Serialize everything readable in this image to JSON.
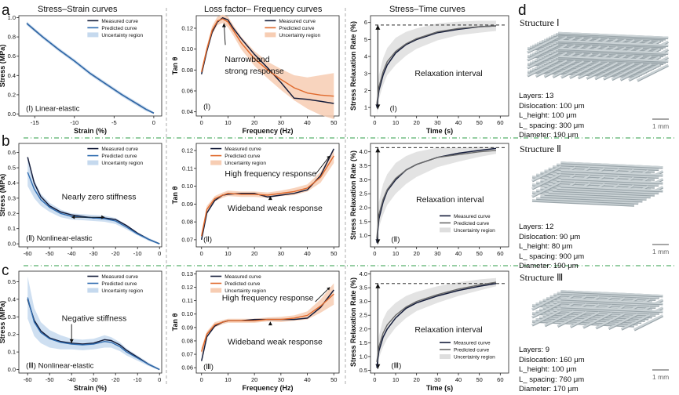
{
  "figure": {
    "row_labels": [
      "a",
      "b",
      "c"
    ],
    "structure_panel_label": "d",
    "column_titles": [
      "Stress–Strain curves",
      "Loss factor– Frequency curves",
      "Stress–Time curves"
    ]
  },
  "legend": {
    "measured": "Measured curve",
    "predicted": "Predicted curve",
    "uncertainty": "Uncertainty region"
  },
  "colors": {
    "measured": "#141c3a",
    "predicted_stress": "#2f6cb0",
    "predicted_loss": "#e0692c",
    "predicted_relax": "#6a6a6a",
    "band_stress": "#c5d9ee",
    "band_loss": "#f7cdb3",
    "band_relax": "#dedede",
    "separator": "#2e9c47",
    "lattice": "#cbd3d6"
  },
  "structures": [
    {
      "title": "Structure Ⅰ",
      "layers": "Layers: 13",
      "dislocation": "Dislocation: 100 μm",
      "l_height": "L_height: 100 μm",
      "l_spacing": "L_ spacing: 300 μm",
      "diameter": "Diameter: 190 μm",
      "scale": "1 mm"
    },
    {
      "title": "Structure Ⅱ",
      "layers": "Layers: 12",
      "dislocation": "Dislocation: 90 μm",
      "l_height": "L_height: 80 μm",
      "l_spacing": "L_ spacing: 900 μm",
      "diameter": "Diameter: 190 μm",
      "scale": "1 mm"
    },
    {
      "title": "Structure Ⅲ",
      "layers": "Layers: 9",
      "dislocation": "Dislocation: 160 μm",
      "l_height": "L_height: 100 μm",
      "l_spacing": "L_ spacing: 760 μm",
      "diameter": "Diameter: 170 μm",
      "scale": "1 mm"
    }
  ],
  "chart_data": [
    {
      "id": "a1",
      "type": "line",
      "xlabel": "Strain (%)",
      "ylabel": "Stress (MPa)",
      "xlim": [
        -17,
        1
      ],
      "ylim": [
        -0.02,
        1.02
      ],
      "xticks": [
        -15,
        -10,
        -5,
        0
      ],
      "yticks": [
        0.0,
        0.2,
        0.4,
        0.6,
        0.8,
        1.0
      ],
      "ytick_labels": [
        "0.0",
        "0.2",
        "0.4",
        "0.6",
        "0.8",
        "1.0"
      ],
      "panel_text": "(Ⅰ) Linear-elastic",
      "legend": "top-right",
      "x": [
        -16,
        -15,
        -14,
        -12,
        -10,
        -8,
        -6,
        -4,
        -2,
        -1,
        0
      ],
      "series": [
        {
          "name": "Measured curve",
          "values": [
            0.94,
            0.87,
            0.8,
            0.67,
            0.55,
            0.42,
            0.31,
            0.2,
            0.1,
            0.05,
            0.01
          ]
        },
        {
          "name": "Predicted curve",
          "values": [
            0.94,
            0.87,
            0.8,
            0.67,
            0.55,
            0.42,
            0.31,
            0.2,
            0.1,
            0.05,
            0.01
          ]
        }
      ],
      "band_width": [
        0.02,
        0.02,
        0.02,
        0.02,
        0.02,
        0.02,
        0.02,
        0.02,
        0.02,
        0.02,
        0.01
      ]
    },
    {
      "id": "a2",
      "type": "line",
      "xlabel": "Frequency (Hz)",
      "ylabel": "Tan θ",
      "xlim": [
        -2,
        52
      ],
      "ylim": [
        0.036,
        0.132
      ],
      "xticks": [
        0,
        10,
        20,
        30,
        40,
        50
      ],
      "yticks": [
        0.04,
        0.06,
        0.08,
        0.1,
        0.12
      ],
      "ytick_labels": [
        "0.04",
        "0.06",
        "0.08",
        "0.10",
        "0.12"
      ],
      "panel_text": "(Ⅰ)",
      "legend": "top-right",
      "annotations": [
        "Narrowband",
        "strong response"
      ],
      "x": [
        0,
        2,
        4,
        6,
        8,
        10,
        12,
        15,
        20,
        25,
        30,
        35,
        40,
        45,
        50
      ],
      "series": [
        {
          "name": "Measured curve",
          "values": [
            0.076,
            0.098,
            0.116,
            0.126,
            0.13,
            0.128,
            0.12,
            0.11,
            0.095,
            0.082,
            0.068,
            0.053,
            0.052,
            0.05,
            0.048
          ]
        },
        {
          "name": "Predicted curve",
          "values": [
            0.078,
            0.1,
            0.118,
            0.127,
            0.129,
            0.126,
            0.118,
            0.106,
            0.091,
            0.08,
            0.071,
            0.063,
            0.058,
            0.056,
            0.055
          ]
        }
      ],
      "band_width": [
        0.003,
        0.003,
        0.004,
        0.004,
        0.004,
        0.005,
        0.005,
        0.006,
        0.007,
        0.008,
        0.01,
        0.012,
        0.015,
        0.019,
        0.022
      ]
    },
    {
      "id": "a3",
      "type": "line",
      "xlabel": "Time (s)",
      "ylabel": "Stress Relaxation Rate  (%)",
      "xlim": [
        -2,
        64
      ],
      "ylim": [
        0.5,
        6.4
      ],
      "xticks": [
        0,
        10,
        20,
        30,
        40,
        50,
        60
      ],
      "yticks": [
        1,
        2,
        3,
        4,
        5,
        6
      ],
      "ytick_labels": [
        "1",
        "2",
        "3",
        "4",
        "5",
        "6"
      ],
      "panel_text": "(Ⅰ)",
      "annotations": [
        "Relaxation interval"
      ],
      "reference_line": 5.85,
      "arrow_range": [
        0.9,
        5.85
      ],
      "x": [
        1,
        2,
        4,
        6,
        10,
        15,
        20,
        30,
        40,
        50,
        58
      ],
      "series": [
        {
          "name": "Measured curve",
          "values": [
            1.0,
            2.0,
            2.9,
            3.5,
            4.2,
            4.7,
            5.0,
            5.4,
            5.6,
            5.75,
            5.8
          ]
        },
        {
          "name": "Predicted curve",
          "values": [
            1.2,
            2.2,
            3.1,
            3.7,
            4.3,
            4.75,
            5.05,
            5.45,
            5.65,
            5.75,
            5.8
          ]
        }
      ],
      "band_width": [
        0.6,
        0.7,
        0.8,
        0.8,
        0.8,
        0.7,
        0.6,
        0.5,
        0.4,
        0.35,
        0.3
      ]
    },
    {
      "id": "b1",
      "type": "line",
      "xlabel": "",
      "ylabel": "Stress (MPa)",
      "xlim": [
        -64,
        1
      ],
      "ylim": [
        -0.02,
        0.66
      ],
      "xticks": [
        -60,
        -50,
        -40,
        -30,
        -20,
        -10,
        0
      ],
      "yticks": [
        0.0,
        0.1,
        0.2,
        0.3,
        0.4,
        0.5,
        0.6
      ],
      "ytick_labels": [
        "0.0",
        "0.1",
        "0.2",
        "0.3",
        "0.4",
        "0.5",
        "0.6"
      ],
      "panel_text": "(Ⅱ) Nonlinear-elastic",
      "legend": "top-right",
      "annotations": [
        "Nearly zero stiffness"
      ],
      "x": [
        -60,
        -57,
        -54,
        -50,
        -45,
        -40,
        -35,
        -30,
        -25,
        -20,
        -15,
        -10,
        -5,
        0
      ],
      "series": [
        {
          "name": "Measured curve",
          "values": [
            0.57,
            0.4,
            0.31,
            0.25,
            0.21,
            0.19,
            0.18,
            0.17,
            0.17,
            0.16,
            0.12,
            0.07,
            0.03,
            0.0
          ]
        },
        {
          "name": "Predicted curve",
          "values": [
            0.47,
            0.36,
            0.29,
            0.24,
            0.2,
            0.18,
            0.175,
            0.17,
            0.165,
            0.15,
            0.11,
            0.065,
            0.03,
            0.0
          ]
        }
      ],
      "band_width": [
        0.09,
        0.06,
        0.04,
        0.03,
        0.025,
        0.02,
        0.02,
        0.02,
        0.02,
        0.02,
        0.015,
        0.01,
        0.01,
        0.005
      ]
    },
    {
      "id": "b2",
      "type": "line",
      "xlabel": "",
      "ylabel": "Tan θ",
      "xlim": [
        -2,
        52
      ],
      "ylim": [
        0.066,
        0.124
      ],
      "xticks": [
        0,
        10,
        20,
        30,
        40,
        50
      ],
      "yticks": [
        0.07,
        0.08,
        0.09,
        0.1,
        0.11,
        0.12
      ],
      "ytick_labels": [
        "0.07",
        "0.08",
        "0.09",
        "0.10",
        "0.11",
        "0.12"
      ],
      "panel_text": "(Ⅱ)",
      "legend": "top-left",
      "annotations": [
        "High frequency response",
        "Wideband weak response"
      ],
      "x": [
        0,
        2,
        5,
        8,
        10,
        15,
        20,
        25,
        30,
        35,
        40,
        45,
        50
      ],
      "series": [
        {
          "name": "Measured curve",
          "values": [
            0.07,
            0.085,
            0.092,
            0.095,
            0.0955,
            0.096,
            0.096,
            0.094,
            0.095,
            0.096,
            0.098,
            0.106,
            0.121
          ]
        },
        {
          "name": "Predicted curve",
          "values": [
            0.072,
            0.087,
            0.093,
            0.095,
            0.096,
            0.0955,
            0.0955,
            0.095,
            0.096,
            0.097,
            0.099,
            0.105,
            0.117
          ]
        }
      ],
      "band_width": [
        0.002,
        0.002,
        0.0015,
        0.0015,
        0.0015,
        0.0015,
        0.0015,
        0.0015,
        0.0015,
        0.002,
        0.002,
        0.003,
        0.004
      ]
    },
    {
      "id": "b3",
      "type": "line",
      "xlabel": "",
      "ylabel": "Stress Relaxation Rate  (%)",
      "xlim": [
        -2,
        64
      ],
      "ylim": [
        0.6,
        4.3
      ],
      "xticks": [
        0,
        10,
        20,
        30,
        40,
        50,
        60
      ],
      "yticks": [
        1.0,
        1.5,
        2.0,
        2.5,
        3.0,
        3.5,
        4.0
      ],
      "ytick_labels": [
        "1.0",
        "1.5",
        "2.0",
        "2.5",
        "3.0",
        "3.5",
        "4.0"
      ],
      "panel_text": "(Ⅱ)",
      "legend": "bottom-right",
      "annotations": [
        "Relaxation interval"
      ],
      "reference_line": 4.15,
      "arrow_range": [
        0.7,
        4.15
      ],
      "x": [
        1,
        2,
        4,
        6,
        10,
        15,
        20,
        30,
        40,
        50,
        58
      ],
      "series": [
        {
          "name": "Measured curve",
          "values": [
            0.75,
            1.6,
            2.2,
            2.6,
            3.0,
            3.35,
            3.55,
            3.8,
            3.95,
            4.05,
            4.12
          ]
        },
        {
          "name": "Predicted curve",
          "values": [
            0.9,
            1.75,
            2.3,
            2.65,
            3.05,
            3.35,
            3.55,
            3.8,
            3.9,
            4.0,
            4.05
          ]
        }
      ],
      "band_width": [
        0.3,
        0.45,
        0.55,
        0.55,
        0.55,
        0.5,
        0.45,
        0.35,
        0.25,
        0.18,
        0.12
      ]
    },
    {
      "id": "c1",
      "type": "line",
      "xlabel": "Strain (%)",
      "ylabel": "Stress (MPa)",
      "xlim": [
        -64,
        1
      ],
      "ylim": [
        -0.02,
        0.56
      ],
      "xticks": [
        -60,
        -50,
        -40,
        -30,
        -20,
        -10,
        0
      ],
      "yticks": [
        0.0,
        0.1,
        0.2,
        0.3,
        0.4,
        0.5
      ],
      "ytick_labels": [
        "0.0",
        "0.1",
        "0.2",
        "0.3",
        "0.4",
        "0.5"
      ],
      "panel_text": "(Ⅲ) Nonlinear-elastic",
      "legend": "top-right",
      "annotations": [
        "Negative stiffness"
      ],
      "x": [
        -60,
        -57,
        -54,
        -50,
        -45,
        -40,
        -35,
        -30,
        -25,
        -22,
        -18,
        -15,
        -10,
        -5,
        0
      ],
      "series": [
        {
          "name": "Measured curve",
          "values": [
            0.4,
            0.28,
            0.22,
            0.18,
            0.16,
            0.15,
            0.145,
            0.15,
            0.17,
            0.165,
            0.14,
            0.11,
            0.07,
            0.03,
            0.0
          ]
        },
        {
          "name": "Predicted curve",
          "values": [
            0.41,
            0.27,
            0.21,
            0.175,
            0.155,
            0.145,
            0.14,
            0.145,
            0.16,
            0.155,
            0.13,
            0.1,
            0.065,
            0.03,
            0.0
          ]
        }
      ],
      "band_width": [
        0.12,
        0.08,
        0.06,
        0.05,
        0.04,
        0.03,
        0.03,
        0.03,
        0.035,
        0.03,
        0.025,
        0.02,
        0.015,
        0.01,
        0.005
      ]
    },
    {
      "id": "c2",
      "type": "line",
      "xlabel": "Frequency (Hz)",
      "ylabel": "Tan θ",
      "xlim": [
        -2,
        52
      ],
      "ylim": [
        0.056,
        0.132
      ],
      "xticks": [
        0,
        10,
        20,
        30,
        40,
        50
      ],
      "yticks": [
        0.06,
        0.07,
        0.08,
        0.09,
        0.1,
        0.11,
        0.12,
        0.13
      ],
      "ytick_labels": [
        "0.06",
        "0.07",
        "0.08",
        "0.09",
        "0.10",
        "0.11",
        "0.12",
        "0.13"
      ],
      "panel_text": "(Ⅲ)",
      "legend": "top-left",
      "annotations": [
        "High frequency response",
        "Wideband weak response"
      ],
      "x": [
        0,
        2,
        5,
        8,
        10,
        15,
        20,
        25,
        30,
        35,
        40,
        45,
        50
      ],
      "series": [
        {
          "name": "Measured curve",
          "values": [
            0.065,
            0.083,
            0.091,
            0.094,
            0.095,
            0.095,
            0.096,
            0.096,
            0.096,
            0.096,
            0.097,
            0.105,
            0.118
          ]
        },
        {
          "name": "Predicted curve",
          "values": [
            0.072,
            0.085,
            0.092,
            0.094,
            0.095,
            0.095,
            0.095,
            0.096,
            0.096,
            0.097,
            0.099,
            0.106,
            0.115
          ]
        }
      ],
      "band_width": [
        0.003,
        0.002,
        0.002,
        0.0015,
        0.0015,
        0.0015,
        0.0015,
        0.0015,
        0.002,
        0.002,
        0.003,
        0.005,
        0.008
      ]
    },
    {
      "id": "c3",
      "type": "line",
      "xlabel": "Time (s)",
      "ylabel": "Stress Relaxation Rate  (%)",
      "xlim": [
        -2,
        64
      ],
      "ylim": [
        0.4,
        4.1
      ],
      "xticks": [
        0,
        10,
        20,
        30,
        40,
        50,
        60
      ],
      "yticks": [
        0.5,
        1.0,
        1.5,
        2.0,
        2.5,
        3.0,
        3.5,
        4.0
      ],
      "ytick_labels": [
        "0.5",
        "1.0",
        "1.5",
        "2.0",
        "2.5",
        "3.0",
        "3.5",
        "4.0"
      ],
      "panel_text": "(Ⅲ)",
      "legend": "bottom-right",
      "annotations": [
        "Relaxation interval"
      ],
      "reference_line": 3.65,
      "arrow_range": [
        0.55,
        3.65
      ],
      "x": [
        1,
        2,
        4,
        6,
        10,
        15,
        20,
        30,
        40,
        50,
        58
      ],
      "series": [
        {
          "name": "Measured curve",
          "values": [
            0.6,
            1.2,
            1.7,
            2.0,
            2.4,
            2.75,
            2.95,
            3.2,
            3.4,
            3.55,
            3.65
          ]
        },
        {
          "name": "Predicted curve",
          "values": [
            0.8,
            1.35,
            1.85,
            2.15,
            2.5,
            2.8,
            3.0,
            3.25,
            3.45,
            3.6,
            3.7
          ]
        }
      ],
      "band_width": [
        0.3,
        0.4,
        0.5,
        0.5,
        0.45,
        0.4,
        0.35,
        0.3,
        0.25,
        0.2,
        0.15
      ]
    }
  ]
}
